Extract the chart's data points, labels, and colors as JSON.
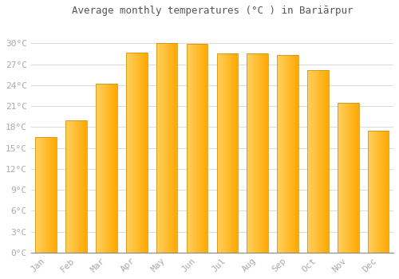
{
  "title": "Average monthly temperatures (°C ) in Bariārpur",
  "months": [
    "Jan",
    "Feb",
    "Mar",
    "Apr",
    "May",
    "Jun",
    "Jul",
    "Aug",
    "Sep",
    "Oct",
    "Nov",
    "Dec"
  ],
  "values": [
    16.5,
    19.0,
    24.2,
    28.7,
    30.0,
    29.9,
    28.5,
    28.5,
    28.3,
    26.2,
    21.5,
    17.5
  ],
  "bar_color_left": "#FFD060",
  "bar_color_right": "#FFA800",
  "bar_edge_color": "#CC8800",
  "background_color": "#ffffff",
  "grid_color": "#dddddd",
  "tick_label_color": "#aaaaaa",
  "title_color": "#555555",
  "ylim": [
    0,
    33
  ],
  "yticks": [
    0,
    3,
    6,
    9,
    12,
    15,
    18,
    21,
    24,
    27,
    30
  ],
  "ytick_labels": [
    "0°C",
    "3°C",
    "6°C",
    "9°C",
    "12°C",
    "15°C",
    "18°C",
    "21°C",
    "24°C",
    "27°C",
    "30°C"
  ]
}
